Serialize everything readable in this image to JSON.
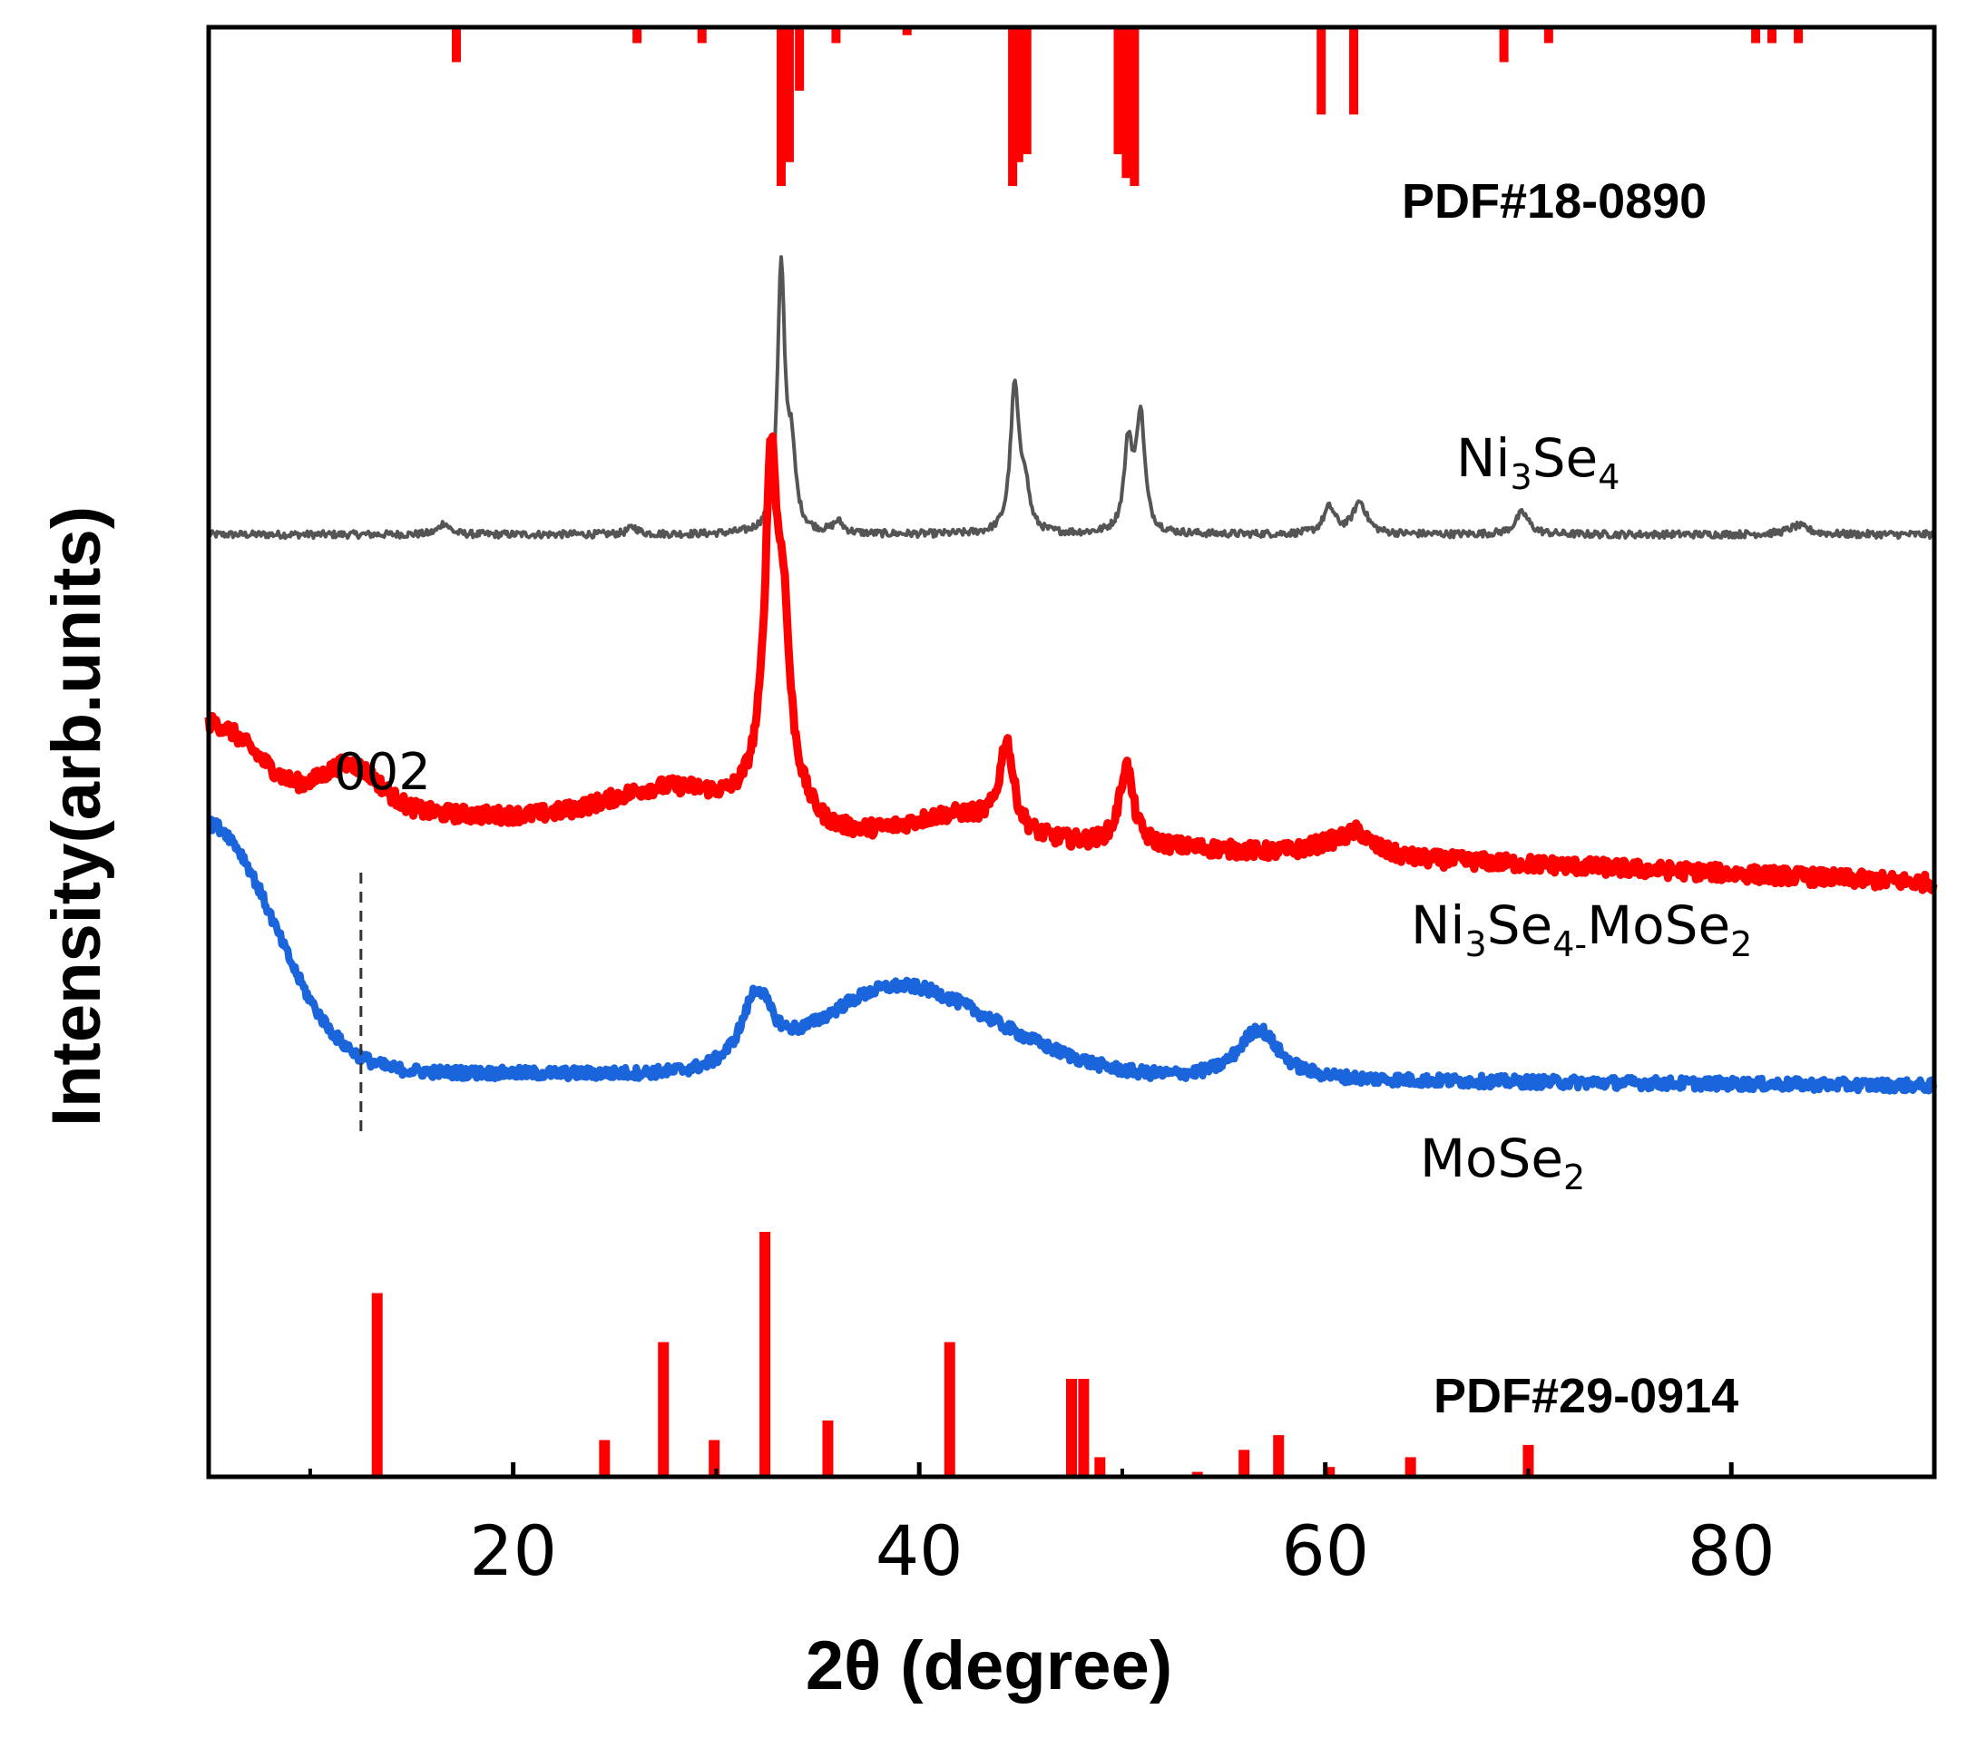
{
  "chart_data": {
    "type": "line",
    "title": "",
    "xlabel": "2θ (degree)",
    "ylabel": "Intensity(arb.units)",
    "xlim": [
      5,
      90
    ],
    "ylim": [
      0,
      100
    ],
    "x_ticks": [
      20,
      40,
      60,
      80
    ],
    "x_minor_ticks": [
      10,
      30,
      50,
      70
    ],
    "grid": false,
    "legend": "none (labels placed next to each curve)",
    "series": [
      {
        "name": "Ni3Se4",
        "label_main": "Ni",
        "label_sub1": "3",
        "label_mid": "Se",
        "label_sub2": "4",
        "color": "#555555",
        "baseline": 65.0,
        "slope": 0.0,
        "noise": 0.25,
        "humps": [],
        "peaks": [
          {
            "x": 16.6,
            "h": 0.8,
            "w": 0.3
          },
          {
            "x": 25.9,
            "h": 0.5,
            "w": 0.3
          },
          {
            "x": 33.2,
            "h": 18.0,
            "w": 0.22
          },
          {
            "x": 33.7,
            "h": 5.0,
            "w": 0.25
          },
          {
            "x": 36.0,
            "h": 0.8,
            "w": 0.3
          },
          {
            "x": 44.7,
            "h": 10.0,
            "w": 0.25
          },
          {
            "x": 45.2,
            "h": 3.0,
            "w": 0.25
          },
          {
            "x": 50.3,
            "h": 6.0,
            "w": 0.25
          },
          {
            "x": 50.9,
            "h": 8.0,
            "w": 0.25
          },
          {
            "x": 60.2,
            "h": 1.8,
            "w": 0.35
          },
          {
            "x": 61.7,
            "h": 2.2,
            "w": 0.4
          },
          {
            "x": 69.7,
            "h": 1.5,
            "w": 0.4
          },
          {
            "x": 83.3,
            "h": 0.6,
            "w": 0.6
          }
        ]
      },
      {
        "name": "Ni3Se4-MoSe2",
        "label_main": "Ni",
        "label_sub1": "3",
        "label_mid": "Se",
        "label_sub2": "4-",
        "label_tail": "MoSe",
        "label_sub3": "2",
        "color": "#ff0000",
        "baseline": 46.5,
        "slope": -0.065,
        "noise": 0.55,
        "humps": [
          {
            "x": 5.0,
            "h": 5.5,
            "w": 3.5
          },
          {
            "x": 12.0,
            "h": 3.0,
            "w": 2.0
          },
          {
            "x": 28.0,
            "h": 2.5,
            "w": 4.5
          },
          {
            "x": 33.0,
            "h": 3.0,
            "w": 1.5
          },
          {
            "x": 42.0,
            "h": 1.5,
            "w": 3.0
          },
          {
            "x": 61.0,
            "h": 1.0,
            "w": 2.0
          }
        ],
        "peaks": [
          {
            "x": 32.7,
            "h": 21.0,
            "w": 0.35
          },
          {
            "x": 33.3,
            "h": 10.0,
            "w": 0.35
          },
          {
            "x": 44.3,
            "h": 6.0,
            "w": 0.4
          },
          {
            "x": 50.2,
            "h": 5.5,
            "w": 0.4
          },
          {
            "x": 61.6,
            "h": 0.8,
            "w": 0.5
          }
        ]
      },
      {
        "name": "MoSe2",
        "label_main": "MoSe",
        "label_sub1": "2",
        "color": "#1a64dc",
        "baseline": 28.0,
        "slope": -0.012,
        "noise": 0.4,
        "humps": [
          {
            "x": 5.0,
            "h": 17.0,
            "w": 4.5
          },
          {
            "x": 38.5,
            "h": 5.5,
            "w": 5.0
          },
          {
            "x": 44.0,
            "h": 2.0,
            "w": 5.0
          }
        ],
        "peaks": [
          {
            "x": 32.0,
            "h": 5.0,
            "w": 0.9
          },
          {
            "x": 56.7,
            "h": 3.5,
            "w": 1.2
          }
        ]
      }
    ],
    "reference_patterns": [
      {
        "name": "PDF#18-0890",
        "label": "PDF#18-0890",
        "color": "#ff0000",
        "position": "top (bars hang from top axis)",
        "lines": [
          {
            "x": 17.2,
            "i": 22
          },
          {
            "x": 26.1,
            "i": 10
          },
          {
            "x": 29.3,
            "i": 10
          },
          {
            "x": 33.2,
            "i": 100
          },
          {
            "x": 33.6,
            "i": 85
          },
          {
            "x": 34.1,
            "i": 40
          },
          {
            "x": 35.9,
            "i": 10
          },
          {
            "x": 39.4,
            "i": 5
          },
          {
            "x": 44.6,
            "i": 100
          },
          {
            "x": 44.9,
            "i": 85
          },
          {
            "x": 45.3,
            "i": 80
          },
          {
            "x": 49.8,
            "i": 80
          },
          {
            "x": 50.2,
            "i": 95
          },
          {
            "x": 50.6,
            "i": 100
          },
          {
            "x": 59.8,
            "i": 55
          },
          {
            "x": 61.4,
            "i": 55
          },
          {
            "x": 68.8,
            "i": 22
          },
          {
            "x": 71.0,
            "i": 10
          },
          {
            "x": 81.2,
            "i": 10
          },
          {
            "x": 82.0,
            "i": 10
          },
          {
            "x": 83.3,
            "i": 10
          }
        ]
      },
      {
        "name": "PDF#29-0914",
        "label": "PDF#29-0914",
        "color": "#ff0000",
        "position": "bottom (bars rise from bottom axis)",
        "lines": [
          {
            "x": 13.3,
            "i": 75
          },
          {
            "x": 24.5,
            "i": 15
          },
          {
            "x": 27.4,
            "i": 55
          },
          {
            "x": 29.9,
            "i": 15
          },
          {
            "x": 32.4,
            "i": 100
          },
          {
            "x": 35.5,
            "i": 23
          },
          {
            "x": 41.5,
            "i": 55
          },
          {
            "x": 47.5,
            "i": 40
          },
          {
            "x": 48.1,
            "i": 40
          },
          {
            "x": 48.9,
            "i": 8
          },
          {
            "x": 53.7,
            "i": 2
          },
          {
            "x": 56.0,
            "i": 11
          },
          {
            "x": 57.7,
            "i": 17
          },
          {
            "x": 60.2,
            "i": 4
          },
          {
            "x": 64.2,
            "i": 8
          },
          {
            "x": 70.0,
            "i": 13
          }
        ]
      }
    ],
    "annotations": [
      {
        "text": "002",
        "x": 12.5,
        "style": "dashed vertical guide between red and blue curves"
      }
    ]
  }
}
